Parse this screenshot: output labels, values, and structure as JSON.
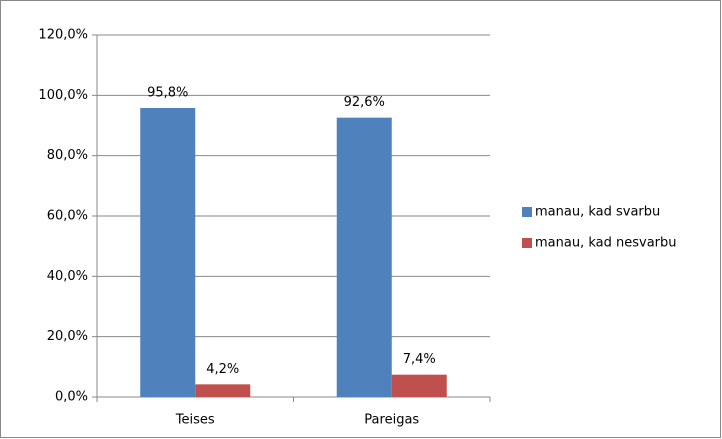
{
  "chart_data": {
    "type": "bar",
    "categories": [
      "Teises",
      "Pareigas"
    ],
    "series": [
      {
        "name": "manau, kad svarbu",
        "color": "#4f81bd",
        "values": [
          95.8,
          92.6
        ],
        "value_labels": [
          "95,8%",
          "92,6%"
        ]
      },
      {
        "name": "manau, kad nesvarbu",
        "color": "#c0504d",
        "values": [
          4.2,
          7.4
        ],
        "value_labels": [
          "4,2%",
          "7,4%"
        ]
      }
    ],
    "ylim": [
      0,
      120
    ],
    "yticks": [
      {
        "value": 0,
        "label": "0,0%"
      },
      {
        "value": 20,
        "label": "20,0%"
      },
      {
        "value": 40,
        "label": "40,0%"
      },
      {
        "value": 60,
        "label": "60,0%"
      },
      {
        "value": 80,
        "label": "80,0%"
      },
      {
        "value": 100,
        "label": "100,0%"
      },
      {
        "value": 120,
        "label": "120,0%"
      }
    ],
    "grid": true,
    "legend": "right"
  }
}
